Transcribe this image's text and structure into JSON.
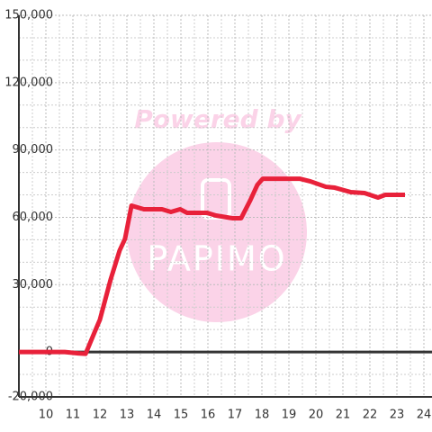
{
  "chart_data": {
    "type": "line",
    "watermark": "Powered by",
    "logo": "PAPIMO",
    "x": [
      9,
      10,
      10.7,
      11.2,
      11.47,
      11.9,
      12,
      12.4,
      12.73,
      12.93,
      13.17,
      13.63,
      14.3,
      14.63,
      14.97,
      15.23,
      15.97,
      16.3,
      16.9,
      17.23,
      17.57,
      17.83,
      18.03,
      19.4,
      19.8,
      20.37,
      20.7,
      21.3,
      21.8,
      22.1,
      22.3,
      22.57,
      23.3
    ],
    "series": [
      {
        "color": "#e8213a",
        "values": [
          0,
          0,
          0,
          -600,
          -800,
          11600,
          14400,
          32400,
          45200,
          50400,
          65200,
          63600,
          63600,
          62400,
          63600,
          62000,
          62000,
          60800,
          59600,
          59600,
          67600,
          74400,
          77200,
          77200,
          76000,
          73600,
          73200,
          71200,
          70800,
          69600,
          68800,
          70000,
          70000
        ]
      }
    ],
    "xlim": [
      9,
      24.3
    ],
    "ylim": [
      -20000,
      150000
    ],
    "xticks": [
      10,
      11,
      12,
      13,
      14,
      15,
      16,
      17,
      18,
      19,
      20,
      21,
      22,
      23,
      24
    ],
    "yticks": [
      {
        "value": -20000,
        "label": "-20,000"
      },
      0,
      {
        "value": 30000,
        "label": "30,000"
      },
      {
        "value": 60000,
        "label": "60,000"
      },
      {
        "value": 90000,
        "label": "90,000"
      },
      {
        "value": 120000,
        "label": "120,000"
      },
      {
        "value": 150000,
        "label": "150,000"
      }
    ],
    "ygrid": [
      -10000,
      10000,
      20000,
      40000,
      50000,
      70000,
      80000,
      100000,
      110000,
      130000,
      140000
    ],
    "xgrid": [
      9.5,
      10.5,
      11.5,
      12.5,
      13.5,
      14.5,
      15.5,
      16.5,
      17.5,
      18.5,
      19.5,
      20.5,
      21.5,
      22.5,
      23.5
    ],
    "grid": true
  }
}
